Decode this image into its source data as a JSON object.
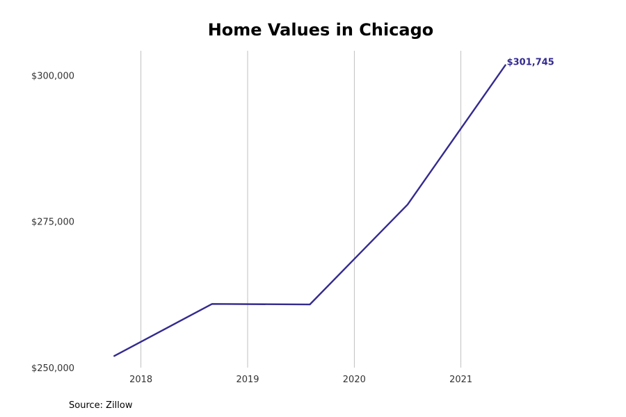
{
  "chart_data": {
    "type": "line",
    "title": "Home Values in Chicago",
    "source": "Source: Zillow",
    "x_ticks": [
      2018,
      2019,
      2020,
      2021
    ],
    "x_tick_labels": [
      "2018",
      "2019",
      "2020",
      "2021"
    ],
    "y_ticks": [
      250000,
      275000,
      300000
    ],
    "y_tick_labels": [
      "$250,000",
      "$275,000",
      "$300,000"
    ],
    "xlim": [
      2017.5,
      2022.0
    ],
    "ylim": [
      250000,
      304200
    ],
    "grid": "vertical",
    "series": [
      {
        "color": "#332a8f",
        "x": [
          2017.75,
          2018.667,
          2019.583,
          2020.5,
          2021.417
        ],
        "y": [
          252000,
          260900,
          260800,
          277900,
          301745
        ],
        "end_label": "$301,745"
      }
    ]
  }
}
